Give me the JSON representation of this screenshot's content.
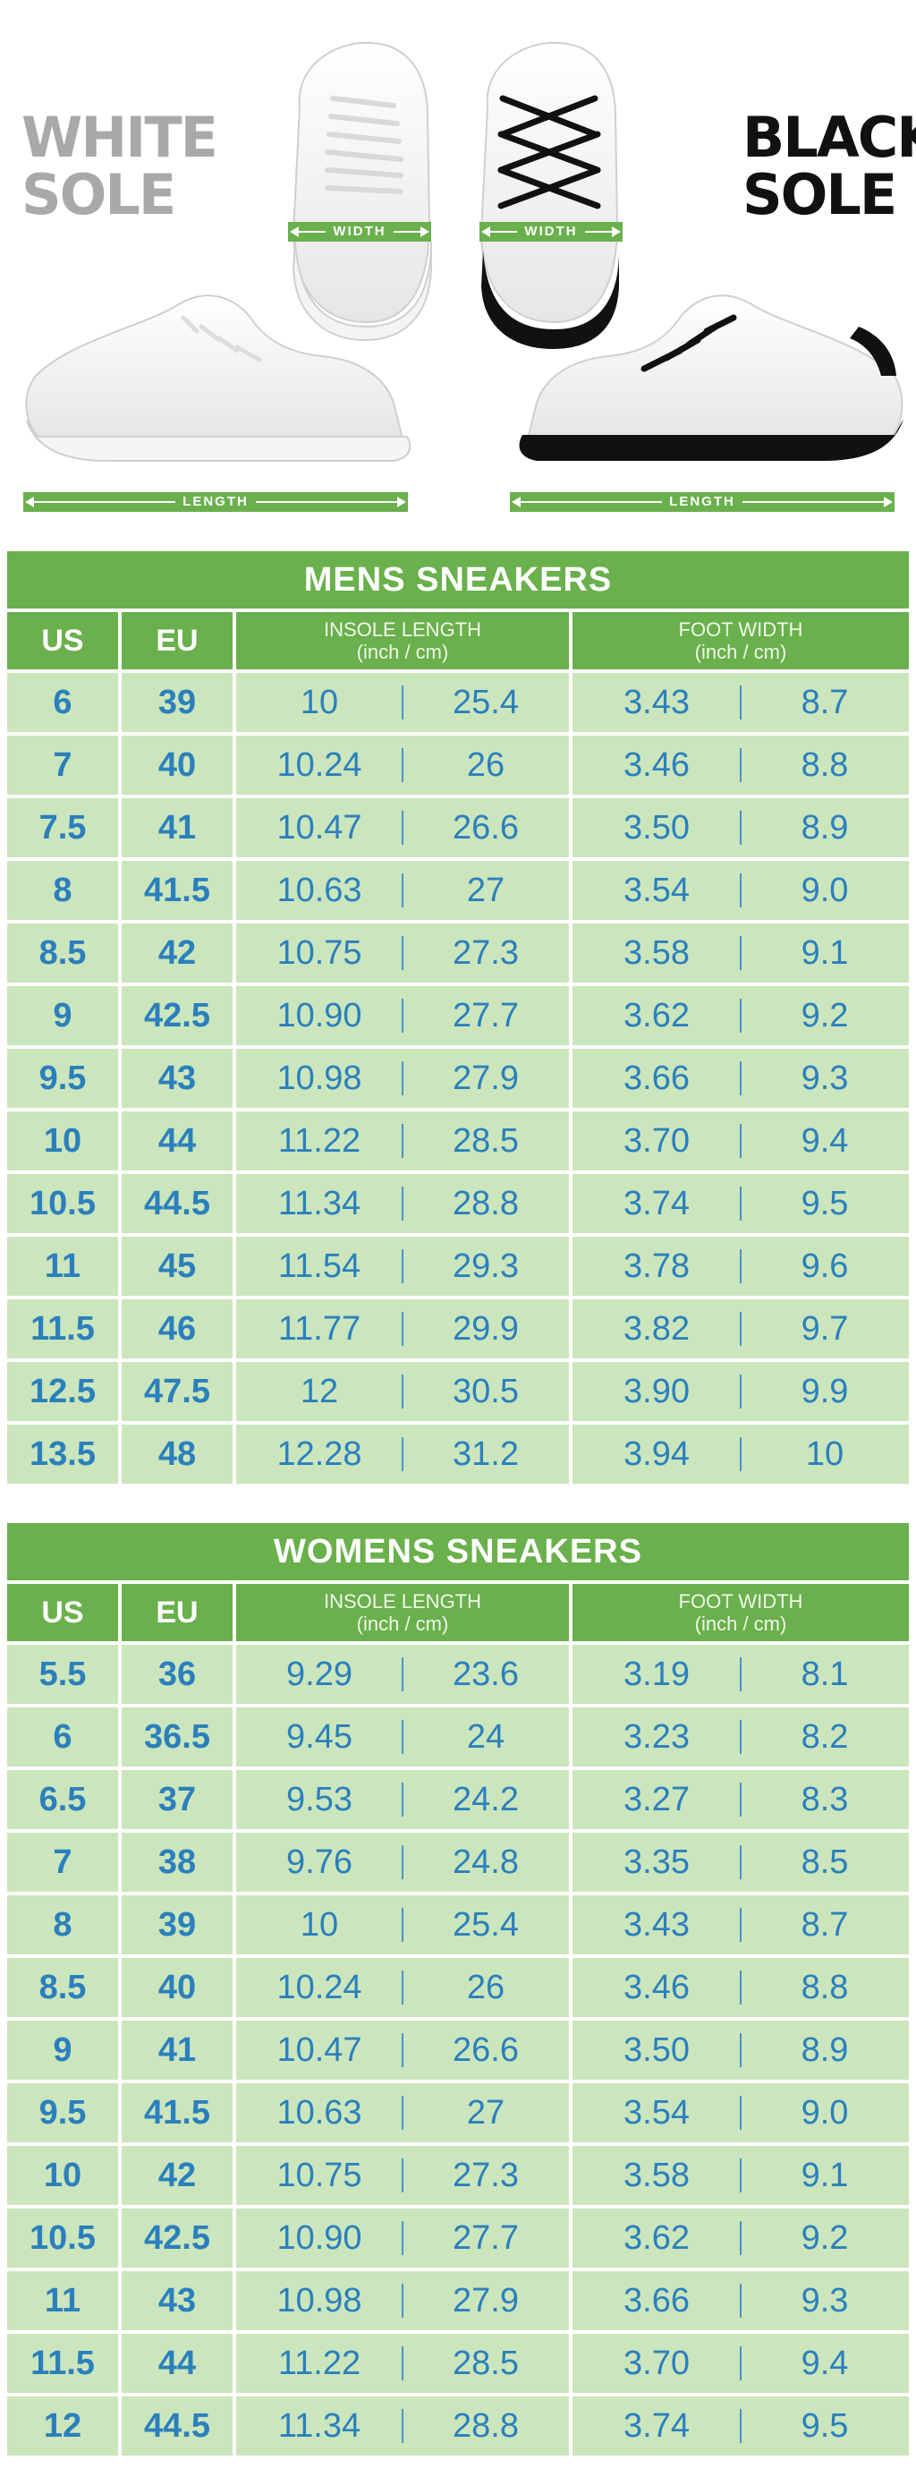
{
  "hero": {
    "white_sole_label": "WHITE SOLE",
    "white_sole_line1": "WHITE",
    "white_sole_line2": "SOLE",
    "black_sole_line1": "BLACK",
    "black_sole_line2": "SOLE",
    "width_label": "WIDTH",
    "length_label": "LENGTH",
    "colors": {
      "accent_green": "#6ab04c",
      "row_green": "#cbe5bd",
      "value_blue": "#2b80bc"
    }
  },
  "mens": {
    "title": "MENS SNEAKERS",
    "headers": {
      "us": "US",
      "eu": "EU",
      "insole": "INSOLE LENGTH",
      "insole_unit": "(inch / cm)",
      "foot": "FOOT WIDTH",
      "foot_unit": "(inch / cm)"
    },
    "rows": [
      {
        "us": "6",
        "eu": "39",
        "ins_in": "10",
        "ins_cm": "25.4",
        "fw_in": "3.43",
        "fw_cm": "8.7"
      },
      {
        "us": "7",
        "eu": "40",
        "ins_in": "10.24",
        "ins_cm": "26",
        "fw_in": "3.46",
        "fw_cm": "8.8"
      },
      {
        "us": "7.5",
        "eu": "41",
        "ins_in": "10.47",
        "ins_cm": "26.6",
        "fw_in": "3.50",
        "fw_cm": "8.9"
      },
      {
        "us": "8",
        "eu": "41.5",
        "ins_in": "10.63",
        "ins_cm": "27",
        "fw_in": "3.54",
        "fw_cm": "9.0"
      },
      {
        "us": "8.5",
        "eu": "42",
        "ins_in": "10.75",
        "ins_cm": "27.3",
        "fw_in": "3.58",
        "fw_cm": "9.1"
      },
      {
        "us": "9",
        "eu": "42.5",
        "ins_in": "10.90",
        "ins_cm": "27.7",
        "fw_in": "3.62",
        "fw_cm": "9.2"
      },
      {
        "us": "9.5",
        "eu": "43",
        "ins_in": "10.98",
        "ins_cm": "27.9",
        "fw_in": "3.66",
        "fw_cm": "9.3"
      },
      {
        "us": "10",
        "eu": "44",
        "ins_in": "11.22",
        "ins_cm": "28.5",
        "fw_in": "3.70",
        "fw_cm": "9.4"
      },
      {
        "us": "10.5",
        "eu": "44.5",
        "ins_in": "11.34",
        "ins_cm": "28.8",
        "fw_in": "3.74",
        "fw_cm": "9.5"
      },
      {
        "us": "11",
        "eu": "45",
        "ins_in": "11.54",
        "ins_cm": "29.3",
        "fw_in": "3.78",
        "fw_cm": "9.6"
      },
      {
        "us": "11.5",
        "eu": "46",
        "ins_in": "11.77",
        "ins_cm": "29.9",
        "fw_in": "3.82",
        "fw_cm": "9.7"
      },
      {
        "us": "12.5",
        "eu": "47.5",
        "ins_in": "12",
        "ins_cm": "30.5",
        "fw_in": "3.90",
        "fw_cm": "9.9"
      },
      {
        "us": "13.5",
        "eu": "48",
        "ins_in": "12.28",
        "ins_cm": "31.2",
        "fw_in": "3.94",
        "fw_cm": "10"
      }
    ]
  },
  "womens": {
    "title": "WOMENS SNEAKERS",
    "headers": {
      "us": "US",
      "eu": "EU",
      "insole": "INSOLE LENGTH",
      "insole_unit": "(inch / cm)",
      "foot": "FOOT WIDTH",
      "foot_unit": "(inch / cm)"
    },
    "rows": [
      {
        "us": "5.5",
        "eu": "36",
        "ins_in": "9.29",
        "ins_cm": "23.6",
        "fw_in": "3.19",
        "fw_cm": "8.1"
      },
      {
        "us": "6",
        "eu": "36.5",
        "ins_in": "9.45",
        "ins_cm": "24",
        "fw_in": "3.23",
        "fw_cm": "8.2"
      },
      {
        "us": "6.5",
        "eu": "37",
        "ins_in": "9.53",
        "ins_cm": "24.2",
        "fw_in": "3.27",
        "fw_cm": "8.3"
      },
      {
        "us": "7",
        "eu": "38",
        "ins_in": "9.76",
        "ins_cm": "24.8",
        "fw_in": "3.35",
        "fw_cm": "8.5"
      },
      {
        "us": "8",
        "eu": "39",
        "ins_in": "10",
        "ins_cm": "25.4",
        "fw_in": "3.43",
        "fw_cm": "8.7"
      },
      {
        "us": "8.5",
        "eu": "40",
        "ins_in": "10.24",
        "ins_cm": "26",
        "fw_in": "3.46",
        "fw_cm": "8.8"
      },
      {
        "us": "9",
        "eu": "41",
        "ins_in": "10.47",
        "ins_cm": "26.6",
        "fw_in": "3.50",
        "fw_cm": "8.9"
      },
      {
        "us": "9.5",
        "eu": "41.5",
        "ins_in": "10.63",
        "ins_cm": "27",
        "fw_in": "3.54",
        "fw_cm": "9.0"
      },
      {
        "us": "10",
        "eu": "42",
        "ins_in": "10.75",
        "ins_cm": "27.3",
        "fw_in": "3.58",
        "fw_cm": "9.1"
      },
      {
        "us": "10.5",
        "eu": "42.5",
        "ins_in": "10.90",
        "ins_cm": "27.7",
        "fw_in": "3.62",
        "fw_cm": "9.2"
      },
      {
        "us": "11",
        "eu": "43",
        "ins_in": "10.98",
        "ins_cm": "27.9",
        "fw_in": "3.66",
        "fw_cm": "9.3"
      },
      {
        "us": "11.5",
        "eu": "44",
        "ins_in": "11.22",
        "ins_cm": "28.5",
        "fw_in": "3.70",
        "fw_cm": "9.4"
      },
      {
        "us": "12",
        "eu": "44.5",
        "ins_in": "11.34",
        "ins_cm": "28.8",
        "fw_in": "3.74",
        "fw_cm": "9.5"
      }
    ]
  }
}
